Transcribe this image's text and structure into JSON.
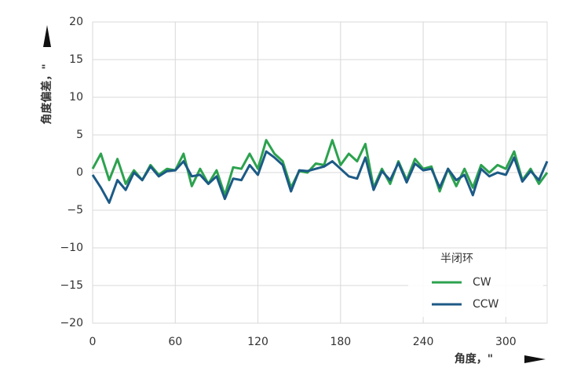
{
  "chart_data": {
    "type": "line",
    "xlabel": "角度，\"",
    "ylabel": "角度偏差，\"",
    "legend_title": "半闭环",
    "legend": "lower right",
    "grid": true,
    "x": [
      0,
      6,
      12,
      18,
      24,
      30,
      36,
      42,
      48,
      54,
      60,
      66,
      72,
      78,
      84,
      90,
      96,
      102,
      108,
      114,
      120,
      126,
      132,
      138,
      144,
      150,
      156,
      162,
      168,
      174,
      180,
      186,
      192,
      198,
      204,
      210,
      216,
      222,
      228,
      234,
      240,
      246,
      252,
      258,
      264,
      270,
      276,
      282,
      288,
      294,
      300,
      306,
      312,
      318,
      324,
      330
    ],
    "series": [
      {
        "name": "CW",
        "color": "#2ca24e",
        "values": [
          0.5,
          2.5,
          -1,
          1.8,
          -1.5,
          0.3,
          -1,
          1,
          -0.3,
          0.5,
          0.3,
          2.5,
          -1.8,
          0.5,
          -1.5,
          0.3,
          -3,
          0.7,
          0.5,
          2.5,
          0.5,
          4.3,
          2.5,
          1.5,
          -2,
          0.2,
          0,
          1.2,
          1,
          4.3,
          1,
          2.5,
          1.5,
          3.8,
          -2,
          0.5,
          -1.5,
          1.5,
          -1,
          1.8,
          0.5,
          0.8,
          -2.5,
          0.5,
          -1.8,
          0.5,
          -2,
          1,
          0,
          1,
          0.5,
          2.8,
          -1,
          0.5,
          -1.5,
          0
        ]
      },
      {
        "name": "CCW",
        "color": "#1c5a86",
        "values": [
          -0.3,
          -2,
          -4,
          -1,
          -2.3,
          0,
          -1,
          0.8,
          -0.5,
          0.2,
          0.3,
          1.5,
          -0.5,
          -0.3,
          -1.5,
          -0.5,
          -3.5,
          -0.8,
          -1,
          1,
          -0.3,
          2.8,
          2,
          1,
          -2.5,
          0.3,
          0.2,
          0.5,
          0.8,
          1.5,
          0.5,
          -0.5,
          -0.8,
          2,
          -2.3,
          0.2,
          -1,
          1.3,
          -1.3,
          1.2,
          0.3,
          0.5,
          -2,
          0.5,
          -1,
          -0.3,
          -3,
          0.5,
          -0.5,
          0,
          -0.3,
          2,
          -1.2,
          0.2,
          -1,
          1.5
        ]
      }
    ],
    "xlim": [
      0,
      330
    ],
    "xticks": [
      0,
      60,
      120,
      180,
      240,
      300
    ],
    "ylim": [
      -20,
      20
    ],
    "yticks": [
      {
        "value": -20,
        "label": "−20"
      },
      {
        "value": -15,
        "label": "−15"
      },
      {
        "value": -10,
        "label": "−10"
      },
      {
        "value": -5,
        "label": "−5"
      },
      0,
      5,
      10,
      15,
      20
    ]
  }
}
